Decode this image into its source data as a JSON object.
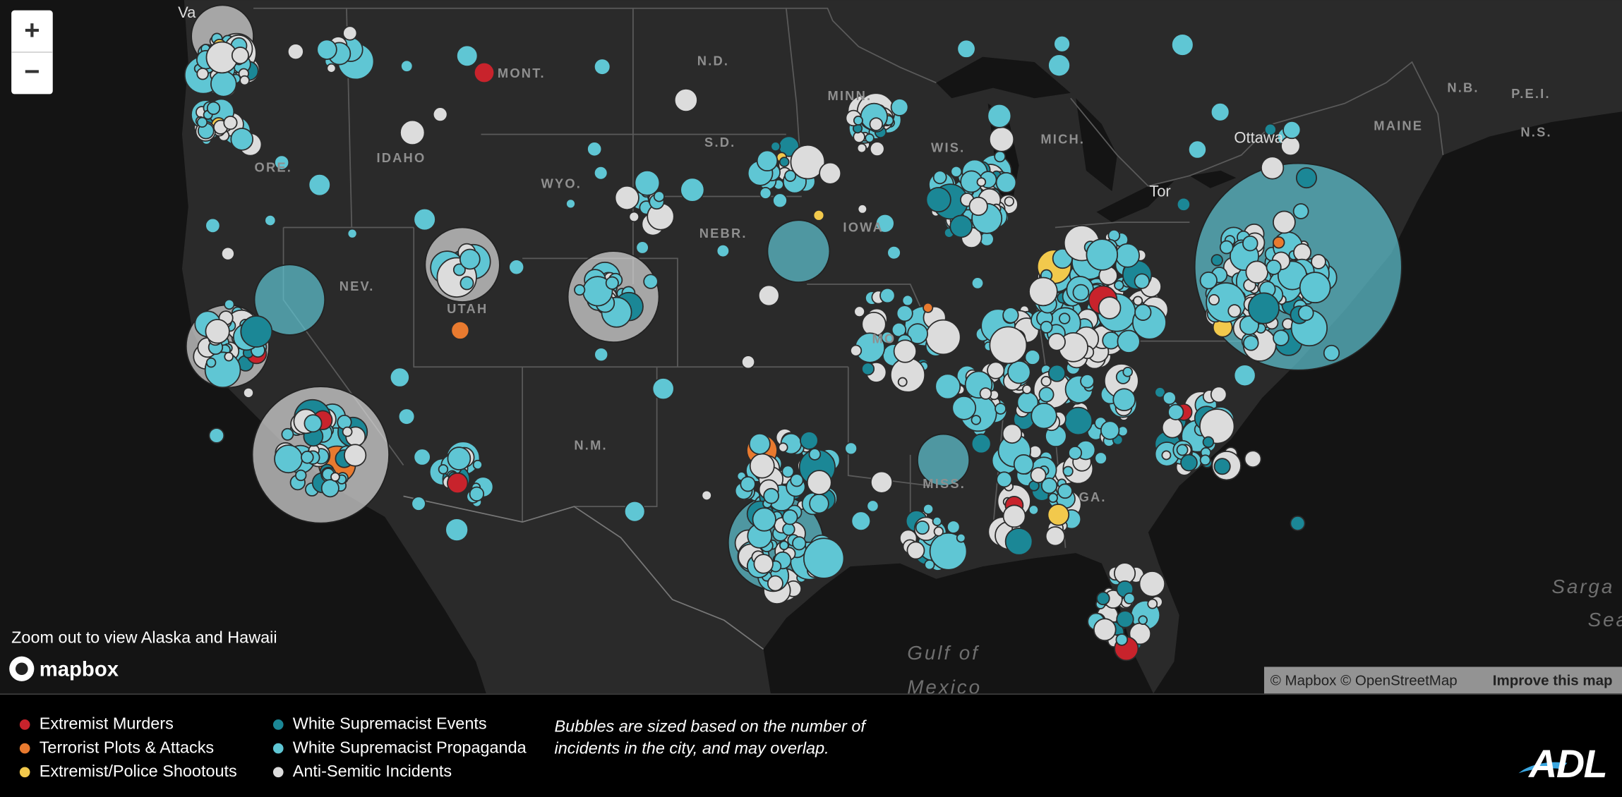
{
  "controls": {
    "zoom_in": "+",
    "zoom_out": "−"
  },
  "map": {
    "labels": [
      "Va",
      "MONT.",
      "N.D.",
      "MINN.",
      "S.D.",
      "IDAHO",
      "ORE.",
      "WYO.",
      "NEBR.",
      "NEV.",
      "UTAH",
      "N.M.",
      "MO",
      "MISS.",
      "GA.",
      "MICH.",
      "WIS.",
      "IOWA",
      "MAINE",
      "N.B.",
      "P.E.I.",
      "N.S.",
      "Ottawa",
      "Tor"
    ],
    "water_labels": [
      "Gulf of",
      "Mexico",
      "Sarga",
      "Sea"
    ]
  },
  "notice": "Zoom out to view Alaska and Hawaii",
  "mapbox_logo": "mapbox",
  "attribution": {
    "credits": "© Mapbox © OpenStreetMap",
    "link": "Improve this map"
  },
  "legend": {
    "items": [
      {
        "label": "Extremist Murders",
        "color": "#c8232c"
      },
      {
        "label": "Terrorist Plots & Attacks",
        "color": "#e87a2f"
      },
      {
        "label": "Extremist/Police Shootouts",
        "color": "#f2c94c"
      },
      {
        "label": "White Supremacist Events",
        "color": "#1b8796"
      },
      {
        "label": "White Supremacist Propaganda",
        "color": "#5fc6d4"
      },
      {
        "label": "Anti-Semitic Incidents",
        "color": "#dcdcdc"
      }
    ],
    "note": [
      "Bubbles are sized based on the number of",
      "incidents in the city, and may overlap."
    ]
  },
  "logo": "ADL"
}
